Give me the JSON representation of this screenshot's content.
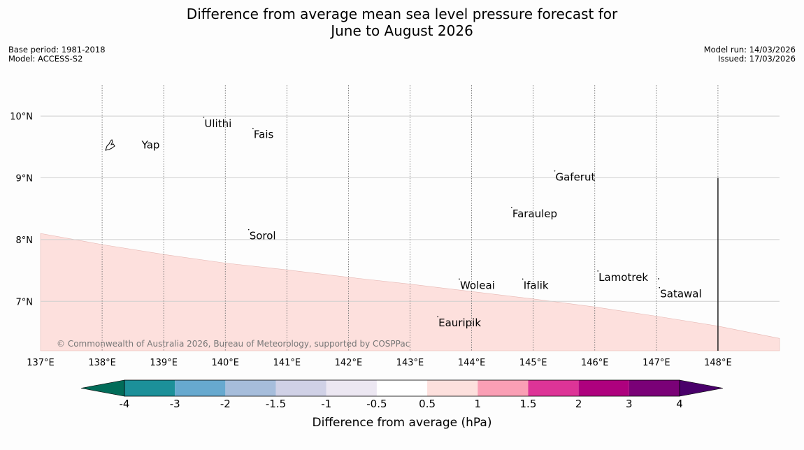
{
  "header": {
    "title_line1": "Difference from average mean sea level pressure forecast for",
    "title_line2": "June to August 2026",
    "base_period": "Base period: 1981-2018",
    "model": "Model: ACCESS-S2",
    "model_run": "Model run: 14/03/2026",
    "issued": "Issued: 17/03/2026"
  },
  "map": {
    "lon_range": [
      137,
      149
    ],
    "lat_range": [
      6.2,
      10.5
    ],
    "lon_ticks": [
      {
        "value": 137,
        "label": "137°E"
      },
      {
        "value": 138,
        "label": "138°E"
      },
      {
        "value": 139,
        "label": "139°E"
      },
      {
        "value": 140,
        "label": "140°E"
      },
      {
        "value": 141,
        "label": "141°E"
      },
      {
        "value": 142,
        "label": "142°E"
      },
      {
        "value": 143,
        "label": "143°E"
      },
      {
        "value": 144,
        "label": "144°E"
      },
      {
        "value": 145,
        "label": "145°E"
      },
      {
        "value": 146,
        "label": "146°E"
      },
      {
        "value": 147,
        "label": "147°E"
      },
      {
        "value": 148,
        "label": "148°E"
      }
    ],
    "lat_ticks": [
      {
        "value": 10,
        "label": "10°N"
      },
      {
        "value": 9,
        "label": "9°N"
      },
      {
        "value": 8,
        "label": "8°N"
      },
      {
        "value": 7,
        "label": "7°N"
      }
    ],
    "places": [
      {
        "name": "Yap",
        "lon": 138.12,
        "lat": 9.53
      },
      {
        "name": "Ulithi",
        "lon": 139.65,
        "lat": 9.88
      },
      {
        "name": "Fais",
        "lon": 140.45,
        "lat": 9.7
      },
      {
        "name": "Gaferut",
        "lon": 145.35,
        "lat": 9.01
      },
      {
        "name": "Faraulep",
        "lon": 144.65,
        "lat": 8.42
      },
      {
        "name": "Sorol",
        "lon": 140.38,
        "lat": 8.06
      },
      {
        "name": "Lamotrek",
        "lon": 146.05,
        "lat": 7.39
      },
      {
        "name": "Woleai",
        "lon": 143.8,
        "lat": 7.26
      },
      {
        "name": "Ifalik",
        "lon": 144.83,
        "lat": 7.26
      },
      {
        "name": "Satawal",
        "lon": 147.05,
        "lat": 7.12
      },
      {
        "name": "Eauripik",
        "lon": 143.45,
        "lat": 6.65
      }
    ],
    "anomaly_region": {
      "value_range": "0.5 to 1",
      "fill_color": "#fde0dd",
      "boundary": [
        {
          "lon": 137.0,
          "lat": 8.1
        },
        {
          "lon": 138.0,
          "lat": 7.92
        },
        {
          "lon": 139.0,
          "lat": 7.76
        },
        {
          "lon": 140.0,
          "lat": 7.62
        },
        {
          "lon": 141.0,
          "lat": 7.51
        },
        {
          "lon": 142.0,
          "lat": 7.39
        },
        {
          "lon": 143.0,
          "lat": 7.28
        },
        {
          "lon": 144.0,
          "lat": 7.16
        },
        {
          "lon": 145.0,
          "lat": 7.04
        },
        {
          "lon": 146.0,
          "lat": 6.91
        },
        {
          "lon": 147.0,
          "lat": 6.76
        },
        {
          "lon": 148.0,
          "lat": 6.6
        },
        {
          "lon": 149.0,
          "lat": 6.4
        }
      ]
    },
    "boundary_line": {
      "lon": 148,
      "lat_from": 6.2,
      "lat_to": 9.0
    },
    "copyright": "© Commonwealth of Australia 2026, Bureau of Meteorology, supported by COSPPac"
  },
  "colorbar": {
    "title": "Difference from average (hPa)",
    "under_color": "#016c59",
    "over_color": "#49006a",
    "segments": [
      {
        "color": "#1c9099"
      },
      {
        "color": "#67a9cf"
      },
      {
        "color": "#a6bddb"
      },
      {
        "color": "#d0d1e6"
      },
      {
        "color": "#ece7f2"
      },
      {
        "color": "#ffffff"
      },
      {
        "color": "#fde0dd"
      },
      {
        "color": "#fa9fb5"
      },
      {
        "color": "#dd3497"
      },
      {
        "color": "#ae017e"
      },
      {
        "color": "#7a0177"
      }
    ],
    "tick_labels": [
      "-4",
      "-3",
      "-2",
      "-1.5",
      "-1",
      "-0.5",
      "0.5",
      "1",
      "1.5",
      "2",
      "3",
      "4"
    ]
  }
}
